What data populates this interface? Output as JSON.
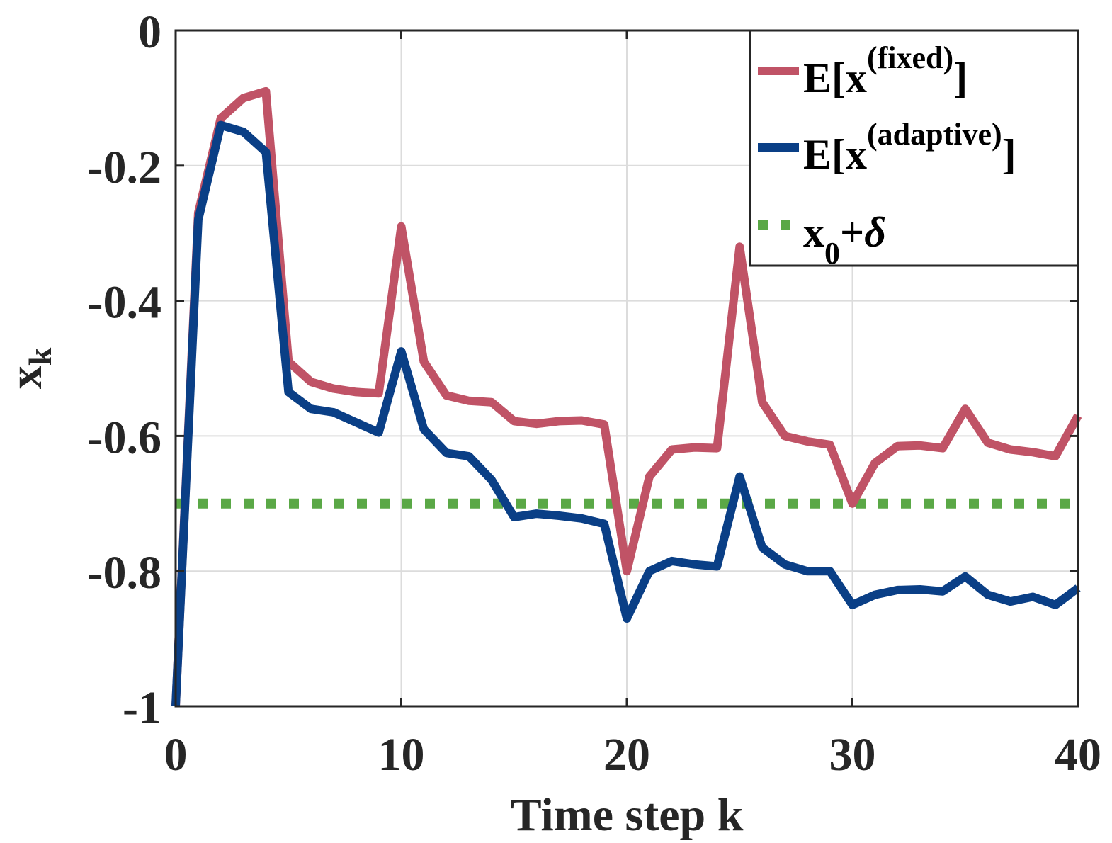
{
  "chart_data": {
    "type": "line",
    "title": "",
    "xlabel": "Time step k",
    "ylabel": {
      "base": "x",
      "sub": "k"
    },
    "xlim": [
      0,
      40
    ],
    "ylim": [
      -1,
      0
    ],
    "xticks": [
      0,
      10,
      20,
      30,
      40
    ],
    "xtick_labels": [
      "0",
      "10",
      "20",
      "30",
      "40"
    ],
    "yticks": [
      0,
      -0.2,
      -0.4,
      -0.6,
      -0.8,
      -1
    ],
    "ytick_labels": [
      "0",
      "-0.2",
      "-0.4",
      "-0.6",
      "-0.8",
      "-1"
    ],
    "grid": true,
    "legend_position": "top-right",
    "x": [
      0,
      1,
      2,
      3,
      4,
      5,
      6,
      7,
      8,
      9,
      10,
      11,
      12,
      13,
      14,
      15,
      16,
      17,
      18,
      19,
      20,
      21,
      22,
      23,
      24,
      25,
      26,
      27,
      28,
      29,
      30,
      31,
      32,
      33,
      34,
      35,
      36,
      37,
      38,
      39,
      40
    ],
    "series": [
      {
        "name": "E[x(fixed)]",
        "legend": {
          "pre": "E[x",
          "sup": "(fixed)",
          "post": "]"
        },
        "color": "#c05366",
        "style": "solid",
        "values": [
          -1.0,
          -0.27,
          -0.13,
          -0.1,
          -0.09,
          -0.49,
          -0.52,
          -0.53,
          -0.535,
          -0.537,
          -0.29,
          -0.49,
          -0.54,
          -0.548,
          -0.55,
          -0.578,
          -0.582,
          -0.578,
          -0.577,
          -0.583,
          -0.8,
          -0.66,
          -0.62,
          -0.617,
          -0.618,
          -0.32,
          -0.55,
          -0.6,
          -0.608,
          -0.613,
          -0.7,
          -0.64,
          -0.615,
          -0.614,
          -0.618,
          -0.56,
          -0.61,
          -0.62,
          -0.624,
          -0.63,
          -0.57
        ]
      },
      {
        "name": "E[x(adaptive)]",
        "legend": {
          "pre": "E[x",
          "sup": "(adaptive)",
          "post": "]"
        },
        "color": "#0a3f86",
        "style": "solid",
        "values": [
          -1.0,
          -0.28,
          -0.14,
          -0.15,
          -0.18,
          -0.535,
          -0.56,
          -0.565,
          -0.58,
          -0.595,
          -0.475,
          -0.59,
          -0.625,
          -0.63,
          -0.665,
          -0.72,
          -0.715,
          -0.718,
          -0.722,
          -0.73,
          -0.87,
          -0.8,
          -0.785,
          -0.79,
          -0.793,
          -0.66,
          -0.765,
          -0.79,
          -0.8,
          -0.8,
          -0.85,
          -0.835,
          -0.828,
          -0.827,
          -0.83,
          -0.808,
          -0.835,
          -0.845,
          -0.838,
          -0.85,
          -0.825
        ]
      },
      {
        "name": "x0+δ",
        "legend": {
          "pre": "x",
          "sub": "0",
          "post": "+",
          "ital": "δ"
        },
        "color": "#5aa846",
        "style": "dotted",
        "values": [
          -0.7,
          -0.7,
          -0.7,
          -0.7,
          -0.7,
          -0.7,
          -0.7,
          -0.7,
          -0.7,
          -0.7,
          -0.7,
          -0.7,
          -0.7,
          -0.7,
          -0.7,
          -0.7,
          -0.7,
          -0.7,
          -0.7,
          -0.7,
          -0.7,
          -0.7,
          -0.7,
          -0.7,
          -0.7,
          -0.7,
          -0.7,
          -0.7,
          -0.7,
          -0.7,
          -0.7,
          -0.7,
          -0.7,
          -0.7,
          -0.7,
          -0.7,
          -0.7,
          -0.7,
          -0.7,
          -0.7,
          -0.7
        ]
      }
    ]
  }
}
